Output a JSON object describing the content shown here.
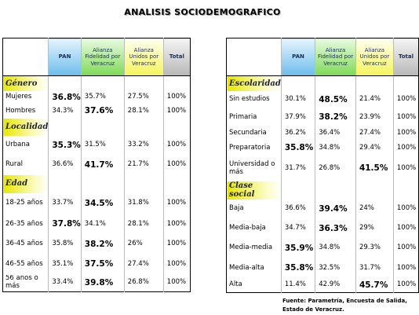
{
  "title": "ANALISIS SOCIODEMOGRAFICO",
  "tables": [
    {
      "columns": [
        "PAN",
        "Alianza Fidelidad por Veracruz",
        "Alianza Unidos por Veracruz",
        "Total"
      ],
      "sections": [
        {
          "title": "Género",
          "rows": [
            {
              "label": "Mujeres",
              "values": [
                "36.8%",
                "35.7%",
                "27.5%",
                "100%"
              ],
              "bold": 0
            },
            {
              "label": "Hombres",
              "values": [
                "34.3%",
                "37.6%",
                "28.1%",
                "100%"
              ],
              "bold": 1
            }
          ]
        },
        {
          "title": "Localidad",
          "rows": [
            {
              "label": "Urbana",
              "values": [
                "35.3%",
                "31.5%",
                "33.2%",
                "100%"
              ],
              "bold": 0
            },
            {
              "label": "Rural",
              "values": [
                "36.6%",
                "41.7%",
                "21.7%",
                "100%"
              ],
              "bold": 1
            }
          ]
        },
        {
          "title": "Edad",
          "rows": [
            {
              "label": "18-25 años",
              "values": [
                "33.7%",
                "34.5%",
                "31.8%",
                "100%"
              ],
              "bold": 1
            },
            {
              "label": "26-35 años",
              "values": [
                "37.8%",
                "34.1%",
                "28.1%",
                "100%"
              ],
              "bold": 0
            },
            {
              "label": "36-45 años",
              "values": [
                "35.8%",
                "38.2%",
                "26%",
                "100%"
              ],
              "bold": 1
            },
            {
              "label": "46-55 años",
              "values": [
                "35.1%",
                "37.5%",
                "27.4%",
                "100%"
              ],
              "bold": 1
            },
            {
              "label": "56 años ó más",
              "values": [
                "33.4%",
                "39.8%",
                "26.8%",
                "100%"
              ],
              "bold": 1
            }
          ]
        }
      ]
    },
    {
      "columns": [
        "PAN",
        "Alianza Fidelidad por Veracruz",
        "Alianza Unidos por Veracruz",
        "Total"
      ],
      "sections": [
        {
          "title": "Escolaridad",
          "rows": [
            {
              "label": "Sin estudios",
              "values": [
                "30.1%",
                "48.5%",
                "21.4%",
                "100%"
              ],
              "bold": 1
            },
            {
              "label": "Primaria",
              "values": [
                "37.9%",
                "38.2%",
                "23.9%",
                "100%"
              ],
              "bold": 1
            },
            {
              "label": "Secundaria",
              "values": [
                "36.2%",
                "36.4%",
                "27.4%",
                "100%"
              ],
              "bold": null
            },
            {
              "label": "Preparatoria",
              "values": [
                "35.8%",
                "34.8%",
                "29.4%",
                "100%"
              ],
              "bold": 0
            },
            {
              "label": "Universidad o más",
              "values": [
                "31.7%",
                "26.8%",
                "41.5%",
                "100%"
              ],
              "bold": 2
            }
          ]
        },
        {
          "title": "Clase social",
          "rows": [
            {
              "label": "Baja",
              "values": [
                "36.6%",
                "39.4%",
                "24%",
                "100%"
              ],
              "bold": 1
            },
            {
              "label": "Media-baja",
              "values": [
                "34.7%",
                "36.3%",
                "29%",
                "100%"
              ],
              "bold": 1
            },
            {
              "label": "Media-media",
              "values": [
                "35.9%",
                "34.8%",
                "29.3%",
                "100%"
              ],
              "bold": 0
            },
            {
              "label": "Media-alta",
              "values": [
                "35.8%",
                "32.5%",
                "31.7%",
                "100%"
              ],
              "bold": 0
            },
            {
              "label": "Alta",
              "values": [
                "11.4%",
                "42.9%",
                "45.7%",
                "100%"
              ],
              "bold": 2
            }
          ]
        }
      ]
    }
  ],
  "source": [
    "Fuente: Parametría, Encuesta de Salida,",
    "Estado de Veracruz."
  ]
}
